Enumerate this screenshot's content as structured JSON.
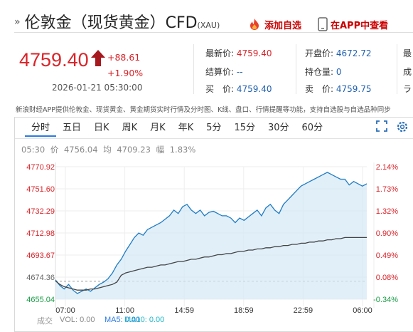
{
  "header": {
    "arrow": "»",
    "title": "伦敦金（现货黄金）CFD",
    "code": "(XAU)",
    "add_fav": "添加自选",
    "app_view": "在APP中查看"
  },
  "quote": {
    "price": "4759.40",
    "change": "+88.61",
    "change_pct": "+1.90%",
    "time": "2026-01-21 05:30:00"
  },
  "stats": {
    "latest_label": "最新价:",
    "latest": "4759.40",
    "settle_label": "结算价:",
    "settle": "--",
    "bid_label": "买　价:",
    "bid": "4759.40",
    "open_label": "开盘价:",
    "open": "4672.72",
    "oi_label": "持仓量:",
    "oi": "0",
    "ask_label": "卖　价:",
    "ask": "4759.75",
    "more1": "最",
    "more2": "成",
    "more3": "ラ"
  },
  "description": "新浪财经APP提供伦敦金、现货黄金、黄金期货实时行情及分时图、K线、盘口、行情提醒等功能，支持自选股与自选品种同步",
  "tabs": [
    {
      "label": "分时",
      "active": true
    },
    {
      "label": "五日"
    },
    {
      "label": "日K"
    },
    {
      "label": "周K"
    },
    {
      "label": "月K"
    },
    {
      "label": "年K"
    },
    {
      "label": "5分"
    },
    {
      "label": "15分"
    },
    {
      "label": "30分"
    },
    {
      "label": "60分"
    }
  ],
  "chart_info": {
    "time": "05:30",
    "price_label": "价",
    "price": "4756.04",
    "avg_label": "均",
    "avg": "4709.23",
    "amp_label": "幅",
    "amp": "1.83%"
  },
  "chart_data": {
    "type": "line",
    "ylim": [
      4655.04,
      4770.92
    ],
    "y_ticks": [
      "4770.92",
      "4751.60",
      "4732.29",
      "4712.98",
      "4693.67",
      "4674.36",
      "4655.04"
    ],
    "y_ticks_right": [
      "2.14%",
      "1.73%",
      "1.32%",
      "0.90%",
      "0.49%",
      "0.08%",
      "-0.34%"
    ],
    "x_ticks": [
      "07:00",
      "11:00",
      "14:59",
      "18:59",
      "22:59",
      "06:00"
    ],
    "base": 4670.79,
    "series": [
      {
        "values": [
          4672,
          4667,
          4664,
          4668,
          4663,
          4660,
          4662,
          4664,
          4662,
          4665,
          4668,
          4670,
          4673,
          4678,
          4685,
          4690,
          4697,
          4703,
          4709,
          4713,
          4711,
          4716,
          4718,
          4720,
          4722,
          4725,
          4728,
          4733,
          4730,
          4736,
          4738,
          4733,
          4730,
          4733,
          4728,
          4731,
          4732,
          4730,
          4728,
          4728,
          4726,
          4722,
          4726,
          4724,
          4727,
          4730,
          4733,
          4728,
          4735,
          4738,
          4733,
          4730,
          4738,
          4742,
          4746,
          4750,
          4754,
          4756,
          4758,
          4760,
          4762,
          4764,
          4766,
          4764,
          4762,
          4760,
          4760,
          4755,
          4758,
          4756,
          4754,
          4756
        ]
      },
      {
        "values": [
          4671,
          4668,
          4666,
          4665,
          4664,
          4663,
          4663,
          4663,
          4664,
          4664,
          4665,
          4666,
          4667,
          4668,
          4670,
          4676,
          4678,
          4679,
          4680,
          4681,
          4682,
          4683,
          4683,
          4684,
          4685,
          4685,
          4686,
          4687,
          4688,
          4688,
          4689,
          4690,
          4690,
          4691,
          4692,
          4692,
          4693,
          4694,
          4694,
          4695,
          4695,
          4696,
          4697,
          4697,
          4698,
          4698,
          4699,
          4699,
          4700,
          4700,
          4701,
          4701,
          4702,
          4702,
          4703,
          4703,
          4704,
          4704,
          4705,
          4705,
          4706,
          4706,
          4707,
          4707,
          4708,
          4708,
          4709,
          4709,
          4709,
          4709,
          4709,
          4709
        ]
      }
    ]
  },
  "footer": {
    "label": "成交",
    "vol": "VOL: 0.00",
    "ma5": "MA5: 0.00",
    "ma10": "MA10: 0.00"
  },
  "colors": {
    "up": "#d9242a",
    "down": "#1a9c45",
    "line": "#1f7cc3",
    "avg": "#444444",
    "area": "#d4e8f7"
  }
}
